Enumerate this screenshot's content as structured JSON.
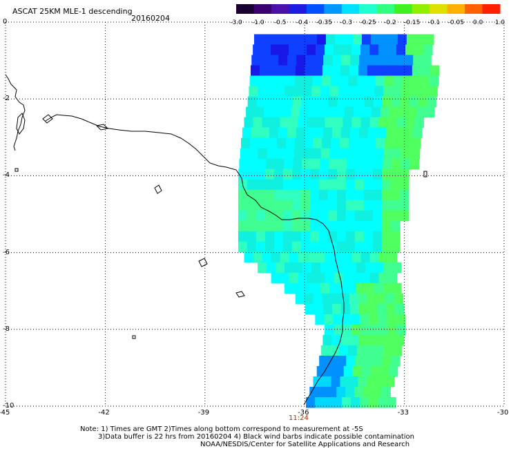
{
  "header": {
    "title": "ASCAT 25KM MLE-1 descending",
    "date": "20160204"
  },
  "colorbar": {
    "tick_labels": [
      "-3.0",
      "-1.0",
      "-0.5",
      "-0.4",
      "-0.35",
      "-0.3",
      "-0.25",
      "-0.2",
      "-0.15",
      "-0.1",
      "-0.05",
      "0.0",
      "1.0"
    ],
    "colors": [
      "#1a0030",
      "#3a0070",
      "#4a10a8",
      "#1c1ce0",
      "#0050ff",
      "#0098ff",
      "#00e0ff",
      "#20ffd0",
      "#30ff80",
      "#40f020",
      "#90f000",
      "#e0e000",
      "#ffb000",
      "#ff6000",
      "#ff2000"
    ]
  },
  "axes": {
    "x_ticks": [
      "-45",
      "-42",
      "-39",
      "-36",
      "-33",
      "-30"
    ],
    "y_ticks": [
      "0",
      "-2",
      "-4",
      "-6",
      "-8",
      "-10"
    ]
  },
  "time_label": "11:24",
  "notes": {
    "line1": "Note: 1) Times are GMT 2)Times along bottom correspond to measurement at -5S",
    "line2": "3)Data buffer is 22 hrs from 20160204 4) Black wind barbs indicate possible contamination",
    "line3": "NOAA/NESDIS/Center for Satellite Applications and Research"
  },
  "map": {
    "lon_range": [
      -45,
      -30
    ],
    "lat_range": [
      -10,
      0
    ],
    "swath_palette": [
      "#00ffff",
      "#10f0e0",
      "#30ffc0",
      "#40ff90",
      "#50ff60",
      "#00d8ff",
      "#0090ff",
      "#1040ff",
      "#1818e8"
    ],
    "swath_rows": [
      {
        "lat": -0.3,
        "w": -37.5,
        "e": -32.2
      },
      {
        "lat": -1.0,
        "w": -37.6,
        "e": -32.2
      },
      {
        "lat": -2.0,
        "w": -37.7,
        "e": -32.2
      },
      {
        "lat": -3.0,
        "w": -37.9,
        "e": -32.6
      },
      {
        "lat": -4.0,
        "w": -38.0,
        "e": -32.9
      },
      {
        "lat": -5.0,
        "w": -38.0,
        "e": -33.1
      },
      {
        "lat": -6.0,
        "w": -38.0,
        "e": -33.3
      },
      {
        "lat": -7.0,
        "w": -36.5,
        "e": -33.3
      },
      {
        "lat": -8.0,
        "w": -35.4,
        "e": -33.0
      },
      {
        "lat": -9.0,
        "w": -35.6,
        "e": -33.3
      },
      {
        "lat": -10.0,
        "w": -36.0,
        "e": -33.5
      }
    ]
  }
}
